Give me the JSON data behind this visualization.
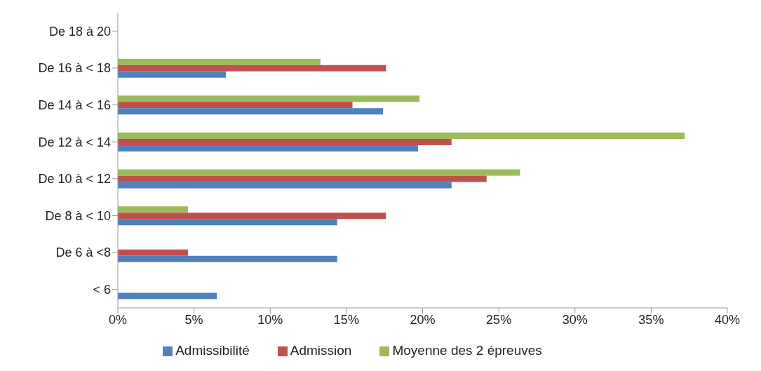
{
  "chart_data": {
    "type": "bar",
    "orientation": "horizontal",
    "categories": [
      "De 18 à 20",
      "De 16 à < 18",
      "De 14 à < 16",
      "De 12 à < 14",
      "De 10 à < 12",
      "De 8 à < 10",
      "De 6 à <8",
      "< 6"
    ],
    "series": [
      {
        "name": "Moyenne des 2 épreuves",
        "color": "#9bbb59",
        "values": [
          0,
          13.3,
          19.8,
          37.2,
          26.4,
          4.6,
          0,
          0
        ]
      },
      {
        "name": "Admission",
        "color": "#c0504d",
        "values": [
          0,
          17.6,
          15.4,
          21.9,
          24.2,
          17.6,
          4.6,
          0
        ]
      },
      {
        "name": "Admissibilité",
        "color": "#4f81bd",
        "values": [
          0,
          7.1,
          17.4,
          19.7,
          21.9,
          14.4,
          14.4,
          6.5
        ]
      }
    ],
    "xlim": [
      0,
      40
    ],
    "xticks": [
      {
        "value": 0,
        "label": "0%"
      },
      {
        "value": 5,
        "label": "5%"
      },
      {
        "value": 10,
        "label": "10%"
      },
      {
        "value": 15,
        "label": "15%"
      },
      {
        "value": 20,
        "label": "20%"
      },
      {
        "value": 25,
        "label": "25%"
      },
      {
        "value": 30,
        "label": "30%"
      },
      {
        "value": 35,
        "label": "35%"
      },
      {
        "value": 40,
        "label": "40%"
      }
    ],
    "grid": false,
    "legend": "bottom"
  }
}
